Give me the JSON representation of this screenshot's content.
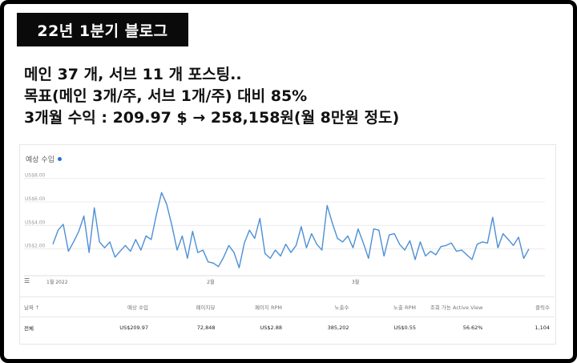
{
  "title_tag": "22년 1분기 블로그",
  "summary": {
    "line1": "메인 37 개, 서브 11 개 포스팅..",
    "line2": "목표(메인 3개/주, 서브 1개/주) 대비 85%",
    "line3": "3개월 수익 : 209.97 $ → 258,158원(월 8만원 정도)"
  },
  "chart": {
    "metric_label": "예상 수입"
  },
  "chart_data": {
    "type": "line",
    "title": "예상 수입",
    "xlabel": "",
    "ylabel": "",
    "ylim": [
      0,
      9
    ],
    "yticks": [
      {
        "value": 2,
        "label": "US$2.00"
      },
      {
        "value": 4,
        "label": "US$4.00"
      },
      {
        "value": 6,
        "label": "US$6.00"
      },
      {
        "value": 8,
        "label": "US$8.00"
      }
    ],
    "xticks": [
      {
        "index": 0,
        "label": "1월 2022"
      },
      {
        "index": 31,
        "label": "2월"
      },
      {
        "index": 59,
        "label": "3월"
      }
    ],
    "series": [
      {
        "color": "#4d8fd6",
        "values": [
          2.4,
          3.6,
          4.1,
          1.8,
          2.6,
          3.5,
          4.8,
          1.7,
          5.5,
          2.6,
          2.1,
          2.6,
          1.3,
          1.8,
          2.3,
          1.8,
          2.8,
          1.9,
          3.1,
          2.8,
          4.9,
          6.8,
          5.8,
          4.0,
          1.9,
          3.1,
          1.2,
          3.5,
          1.7,
          1.9,
          0.9,
          0.8,
          0.5,
          1.3,
          2.3,
          1.7,
          0.4,
          2.5,
          3.6,
          2.9,
          4.6,
          1.6,
          1.2,
          1.9,
          1.4,
          2.4,
          1.7,
          2.3,
          3.9,
          2.1,
          3.3,
          2.4,
          1.9,
          5.7,
          4.2,
          2.9,
          2.6,
          3.1,
          2.1,
          3.7,
          2.5,
          1.2,
          3.7,
          3.6,
          1.4,
          3.2,
          3.3,
          2.4,
          1.9,
          2.7,
          1.1,
          2.6,
          1.4,
          1.8,
          1.5,
          2.2,
          2.3,
          2.5,
          1.8,
          1.9,
          1.5,
          1.1,
          2.4,
          2.6,
          2.5,
          4.7,
          2.1,
          3.3,
          2.8,
          2.3,
          3.0,
          1.2,
          2.0
        ]
      }
    ]
  },
  "table": {
    "headers": [
      "날짜 ↑",
      "예상 수입",
      "페이지뷰",
      "페이지 RPM",
      "노출수",
      "노출 RPM",
      "조회 가능 Active View",
      "클릭수"
    ],
    "rows": [
      [
        "전체",
        "US$209.97",
        "72,848",
        "US$2.88",
        "385,202",
        "US$0.55",
        "56.62%",
        "1,104"
      ]
    ]
  }
}
